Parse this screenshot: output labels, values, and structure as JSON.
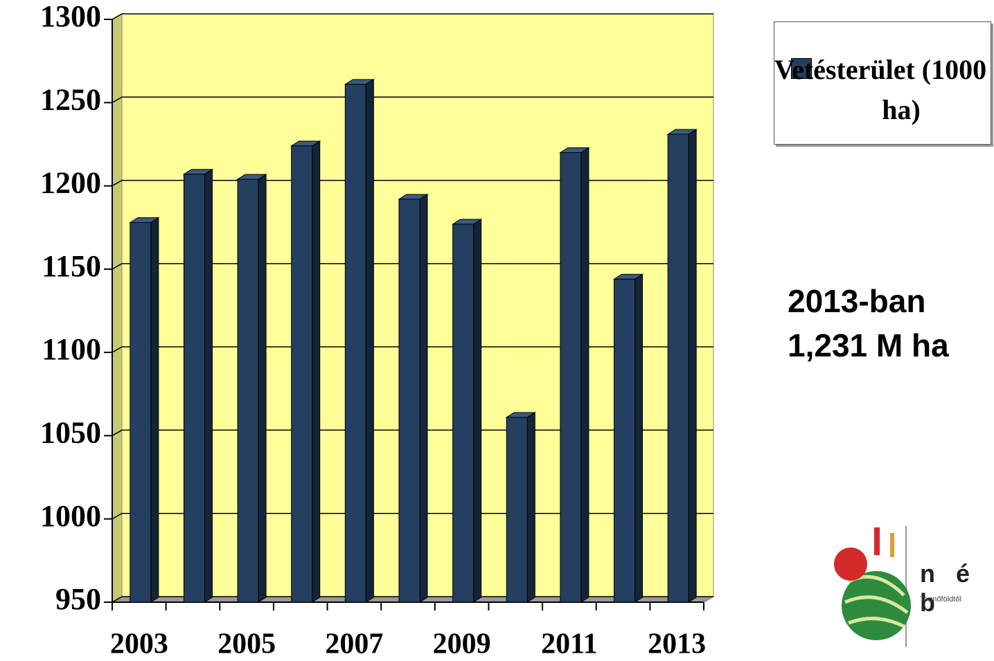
{
  "chart_data": {
    "type": "bar",
    "categories": [
      "2003",
      null,
      "2005",
      null,
      "2007",
      null,
      "2009",
      null,
      "2011",
      null,
      "2013"
    ],
    "series": [
      {
        "name": "Vetésterület (1000 ha)",
        "color": "#243f60",
        "values": [
          1178,
          1207,
          1204,
          1224,
          1261,
          1192,
          1177,
          1061,
          1220,
          1144,
          1231
        ]
      }
    ],
    "ylim": [
      950,
      1300
    ],
    "yticks": [
      950,
      1000,
      1050,
      1100,
      1150,
      1200,
      1250,
      1300
    ],
    "grid": true,
    "background": "#ffff99",
    "annotations": [
      "2013-ban",
      "1,231 M ha"
    ]
  },
  "logo": {
    "text": "n é b",
    "tagline": "Termőföldtől"
  }
}
